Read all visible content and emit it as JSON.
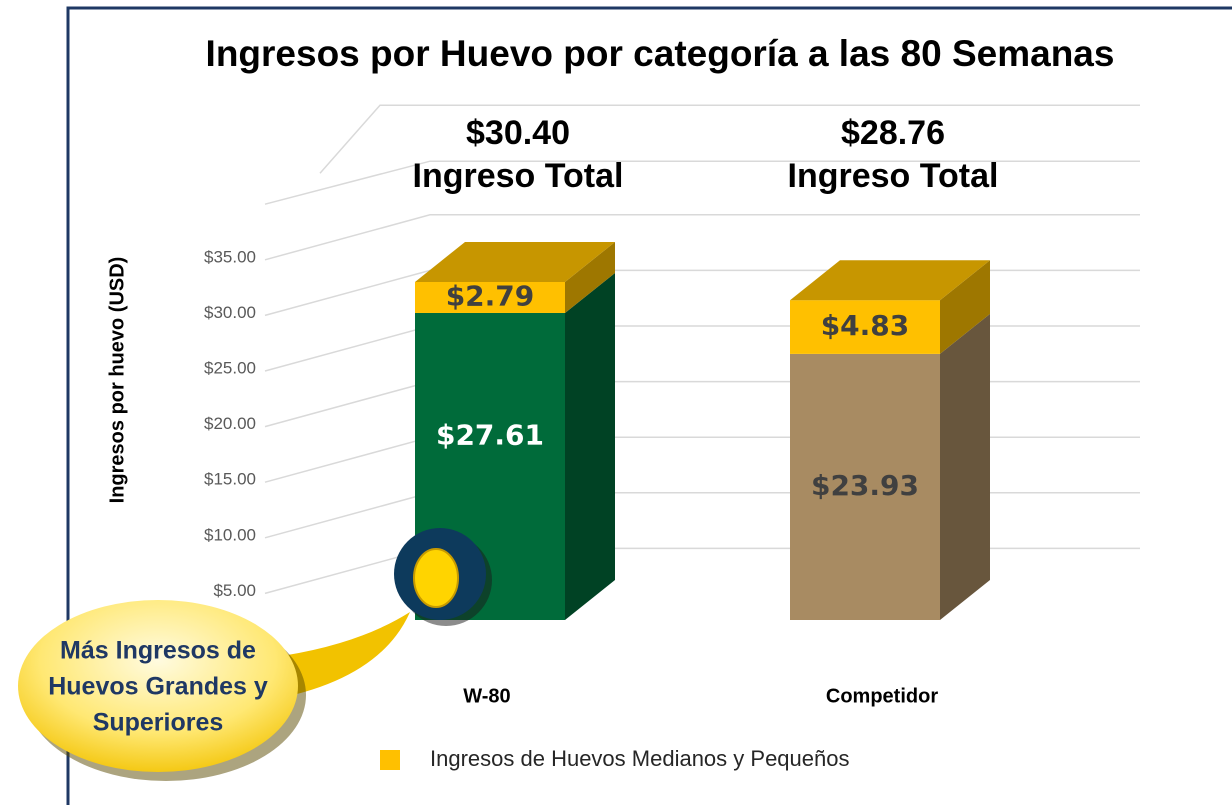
{
  "chart_data": {
    "type": "bar3d_stacked",
    "title": "Ingresos por Huevo por categoría a las 80 Semanas",
    "y_label": "Ingresos por huevo (USD)",
    "categories": [
      "W-80",
      "Competidor"
    ],
    "series": [
      {
        "colors": [
          "#006b3a",
          "#a88b62"
        ],
        "label_colors": [
          "#ffffff",
          "#404040"
        ],
        "values": [
          27.61,
          23.93
        ],
        "value_labels": [
          "$27.61",
          "$23.93"
        ]
      },
      {
        "name": "Ingresos de Huevos Medianos y Pequeños",
        "color": "#ffc000",
        "label_colors": [
          "#404040",
          "#404040"
        ],
        "values": [
          2.79,
          4.83
        ],
        "value_labels": [
          "$2.79",
          "$4.83"
        ]
      }
    ],
    "totals": [
      30.4,
      28.76
    ],
    "total_labels": [
      "$30.40",
      "$28.76"
    ],
    "total_caption": "Ingreso Total",
    "ylim": [
      0,
      40
    ],
    "yticks": [
      {
        "value": 5,
        "label": "$5.00"
      },
      {
        "value": 10,
        "label": "$10.00"
      },
      {
        "value": 15,
        "label": "$15.00"
      },
      {
        "value": 20,
        "label": "$20.00"
      },
      {
        "value": 25,
        "label": "$25.00"
      },
      {
        "value": 30,
        "label": "$30.00"
      },
      {
        "value": 35,
        "label": "$35.00"
      }
    ],
    "grid": true,
    "callout": [
      "Más Ingresos de",
      "Huevos Grandes y",
      "Superiores"
    ]
  }
}
